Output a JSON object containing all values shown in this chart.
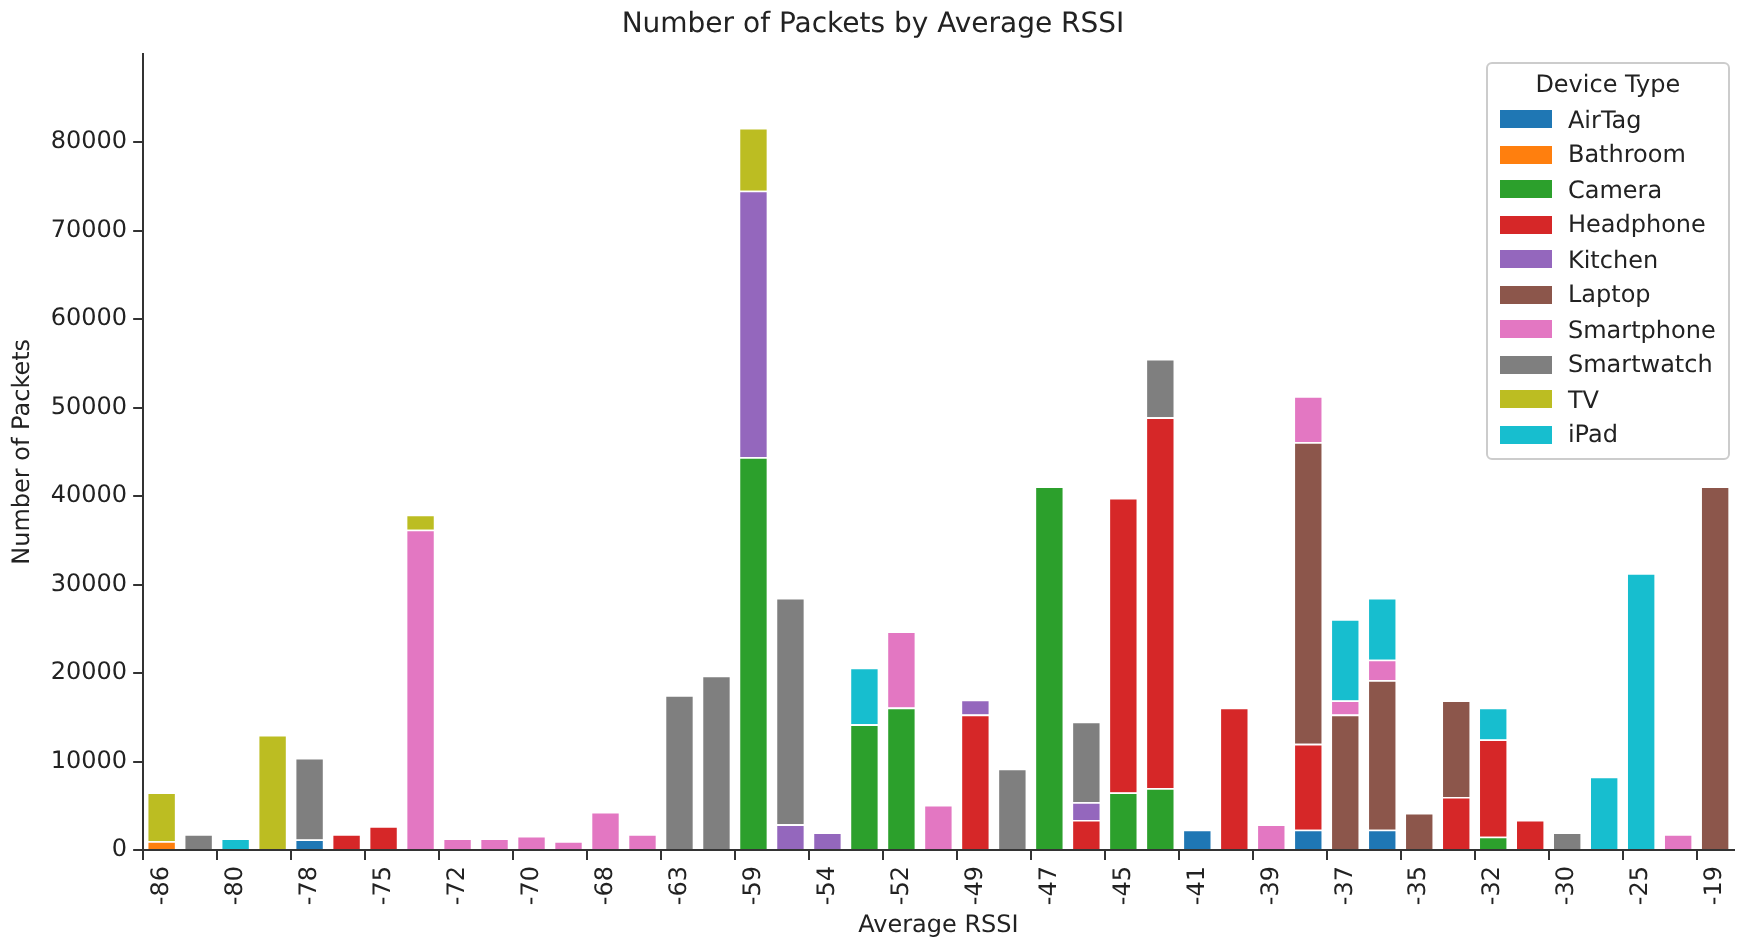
{
  "chart_data": {
    "type": "bar",
    "title": "Number of Packets by Average RSSI",
    "xlabel": "Average RSSI",
    "ylabel": "Number of Packets",
    "legend_title": "Device Type",
    "stacked": true,
    "legend": "top right",
    "grid": false,
    "categories": [
      "-86",
      null,
      "-80",
      null,
      "-78",
      null,
      "-75",
      null,
      "-72",
      null,
      "-70",
      null,
      "-68",
      null,
      "-63",
      null,
      "-59",
      null,
      "-54",
      null,
      "-52",
      null,
      "-49",
      null,
      "-47",
      null,
      "-45",
      null,
      "-41",
      null,
      "-39",
      null,
      "-37",
      null,
      "-35",
      null,
      "-32",
      null,
      "-30",
      null,
      "-25",
      null,
      "-19"
    ],
    "ylim": [
      0,
      90000
    ],
    "yticks": [
      0,
      10000,
      20000,
      30000,
      40000,
      50000,
      60000,
      70000,
      80000
    ],
    "series": [
      {
        "name": "AirTag",
        "color": "#1f77b4",
        "values": [
          null,
          null,
          null,
          null,
          1200,
          null,
          null,
          null,
          null,
          null,
          null,
          null,
          null,
          null,
          null,
          null,
          null,
          null,
          null,
          null,
          null,
          null,
          null,
          null,
          null,
          null,
          null,
          null,
          2300,
          null,
          null,
          2300,
          null,
          2300,
          null,
          null,
          null,
          null,
          null,
          null,
          null,
          null,
          null
        ]
      },
      {
        "name": "Bathroom",
        "color": "#ff7f0e",
        "values": [
          1000,
          null,
          null,
          null,
          null,
          null,
          null,
          null,
          null,
          null,
          null,
          null,
          null,
          null,
          null,
          null,
          null,
          null,
          null,
          null,
          null,
          null,
          null,
          null,
          null,
          null,
          null,
          null,
          null,
          null,
          null,
          null,
          null,
          null,
          null,
          null,
          null,
          null,
          null,
          null,
          null,
          null,
          null
        ]
      },
      {
        "name": "Camera",
        "color": "#2ca02c",
        "values": [
          null,
          null,
          null,
          null,
          null,
          null,
          null,
          null,
          null,
          null,
          null,
          null,
          null,
          null,
          null,
          null,
          44400,
          null,
          null,
          14200,
          16100,
          null,
          null,
          null,
          41100,
          null,
          6500,
          7000,
          null,
          null,
          null,
          null,
          null,
          null,
          null,
          null,
          1500,
          null,
          null,
          null,
          null,
          null,
          null
        ]
      },
      {
        "name": "Headphone",
        "color": "#d62728",
        "values": [
          null,
          null,
          null,
          null,
          null,
          1800,
          2700,
          null,
          null,
          null,
          null,
          null,
          null,
          null,
          null,
          null,
          null,
          null,
          null,
          null,
          null,
          null,
          15300,
          null,
          null,
          3400,
          33300,
          41900,
          null,
          16100,
          null,
          9700,
          null,
          null,
          null,
          6000,
          11000,
          3400,
          null,
          null,
          null,
          null,
          null
        ]
      },
      {
        "name": "Kitchen",
        "color": "#9467bd",
        "values": [
          null,
          null,
          null,
          null,
          null,
          null,
          null,
          null,
          null,
          null,
          null,
          null,
          null,
          null,
          null,
          null,
          30100,
          2900,
          2000,
          null,
          null,
          null,
          1700,
          null,
          null,
          2000,
          null,
          null,
          null,
          null,
          null,
          null,
          null,
          null,
          null,
          null,
          null,
          null,
          null,
          null,
          null,
          null,
          null
        ]
      },
      {
        "name": "Laptop",
        "color": "#8c564b",
        "values": [
          null,
          null,
          null,
          null,
          null,
          null,
          null,
          null,
          null,
          null,
          null,
          null,
          null,
          null,
          null,
          null,
          null,
          null,
          null,
          null,
          null,
          null,
          null,
          null,
          null,
          null,
          null,
          null,
          null,
          null,
          null,
          34100,
          15300,
          16900,
          4200,
          10900,
          null,
          null,
          null,
          null,
          null,
          null,
          41100
        ]
      },
      {
        "name": "Smartphone",
        "color": "#e377c2",
        "values": [
          null,
          null,
          null,
          null,
          null,
          null,
          null,
          36200,
          1300,
          1300,
          1600,
          1000,
          4300,
          1800,
          null,
          null,
          null,
          null,
          null,
          null,
          8600,
          5100,
          null,
          null,
          null,
          null,
          null,
          null,
          null,
          null,
          2900,
          5200,
          1600,
          2300,
          null,
          null,
          null,
          null,
          null,
          null,
          null,
          1800,
          null
        ]
      },
      {
        "name": "Smartwatch",
        "color": "#7f7f7f",
        "values": [
          null,
          1800,
          null,
          null,
          9200,
          null,
          null,
          null,
          null,
          null,
          null,
          null,
          null,
          null,
          17500,
          19700,
          null,
          25600,
          null,
          null,
          null,
          null,
          null,
          9200,
          null,
          9100,
          null,
          6600,
          null,
          null,
          null,
          null,
          null,
          null,
          null,
          null,
          null,
          null,
          2000,
          null,
          null,
          null,
          null
        ]
      },
      {
        "name": "TV",
        "color": "#bcbd22",
        "values": [
          5500,
          null,
          null,
          13000,
          null,
          null,
          null,
          1700,
          null,
          null,
          null,
          null,
          null,
          null,
          null,
          null,
          7100,
          null,
          null,
          null,
          null,
          null,
          null,
          null,
          null,
          null,
          null,
          null,
          null,
          null,
          null,
          null,
          null,
          null,
          null,
          null,
          null,
          null,
          null,
          null,
          null,
          null,
          null
        ]
      },
      {
        "name": "iPad",
        "color": "#17becf",
        "values": [
          null,
          null,
          1300,
          null,
          null,
          null,
          null,
          null,
          null,
          null,
          null,
          null,
          null,
          null,
          null,
          null,
          null,
          null,
          null,
          6400,
          null,
          null,
          null,
          null,
          null,
          null,
          null,
          null,
          null,
          null,
          null,
          null,
          9200,
          7000,
          null,
          null,
          3600,
          null,
          null,
          8300,
          31300,
          null,
          null
        ]
      }
    ]
  }
}
